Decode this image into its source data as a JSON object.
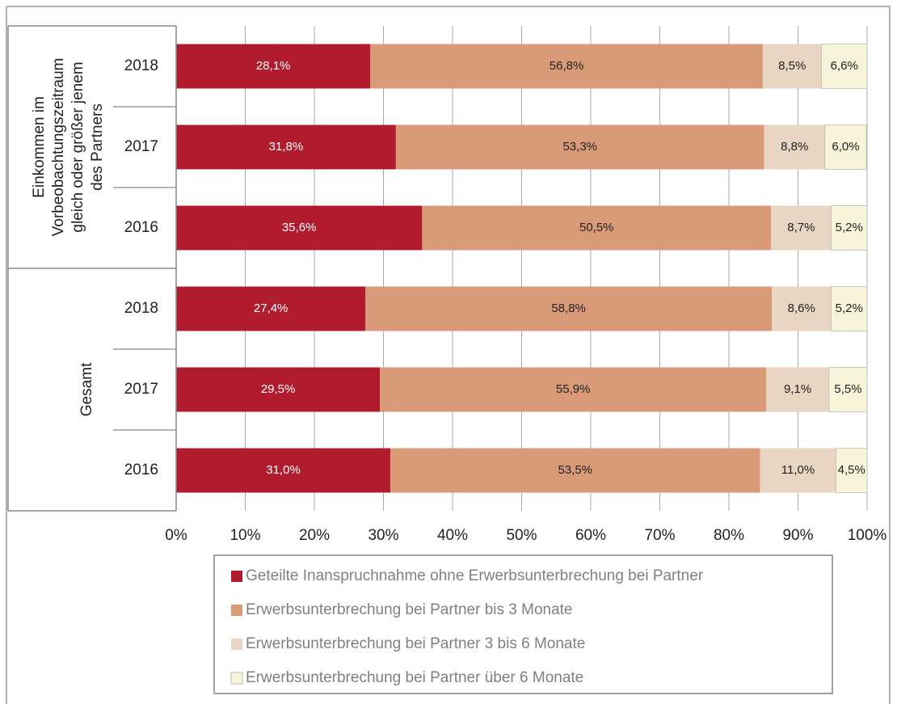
{
  "chart_data": {
    "type": "stacked_barh",
    "groups": [
      {
        "label": [
          "Einkommen im",
          "Vorbeobachtungszeitraum",
          "gleich oder größer jenem",
          "des Partners"
        ],
        "size": 3
      },
      {
        "label": [
          "Gesamt"
        ],
        "size": 3
      }
    ],
    "categories": [
      "2018",
      "2017",
      "2016",
      "2018",
      "2017",
      "2016"
    ],
    "series": [
      {
        "name": "Geteilte Inanspruchnahme ohne Erwerbsunterbrechung bei Partner",
        "color": "#b01c2e",
        "label_color": "#ffffff",
        "values": [
          28.1,
          31.8,
          35.6,
          27.4,
          29.5,
          31.0
        ],
        "value_labels": [
          "28,1%",
          "31,8%",
          "35,6%",
          "27,4%",
          "29,5%",
          "31,0%"
        ]
      },
      {
        "name": "Erwerbsunterbrechung bei Partner bis 3 Monate",
        "color": "#d99a78",
        "label_color": "#222222",
        "values": [
          56.8,
          53.3,
          50.5,
          58.8,
          55.9,
          53.5
        ],
        "value_labels": [
          "56,8%",
          "53,3%",
          "50,5%",
          "58,8%",
          "55,9%",
          "53,5%"
        ]
      },
      {
        "name": "Erwerbsunterbrechung bei Partner 3 bis 6 Monate",
        "color": "#e8d6c2",
        "label_color": "#222222",
        "values": [
          8.5,
          8.8,
          8.7,
          8.6,
          9.1,
          11.0
        ],
        "value_labels": [
          "8,5%",
          "8,8%",
          "8,7%",
          "8,6%",
          "9,1%",
          "11,0%"
        ]
      },
      {
        "name": "Erwerbsunterbrechung bei Partner über 6 Monate",
        "color": "#f7f4d9",
        "label_color": "#222222",
        "values": [
          6.6,
          6.0,
          5.2,
          5.2,
          5.5,
          4.5
        ],
        "value_labels": [
          "6,6%",
          "6,0%",
          "5,2%",
          "5,2%",
          "5,5%",
          "4,5%"
        ]
      }
    ],
    "xlim": [
      0,
      100
    ],
    "xticks": [
      {
        "value": 0,
        "label": "0%"
      },
      {
        "value": 10,
        "label": "10%"
      },
      {
        "value": 20,
        "label": "20%"
      },
      {
        "value": 30,
        "label": "30%"
      },
      {
        "value": 40,
        "label": "40%"
      },
      {
        "value": 50,
        "label": "50%"
      },
      {
        "value": 60,
        "label": "60%"
      },
      {
        "value": 70,
        "label": "70%"
      },
      {
        "value": 80,
        "label": "80%"
      },
      {
        "value": 90,
        "label": "90%"
      },
      {
        "value": 100,
        "label": "100%"
      }
    ],
    "grid": true
  }
}
